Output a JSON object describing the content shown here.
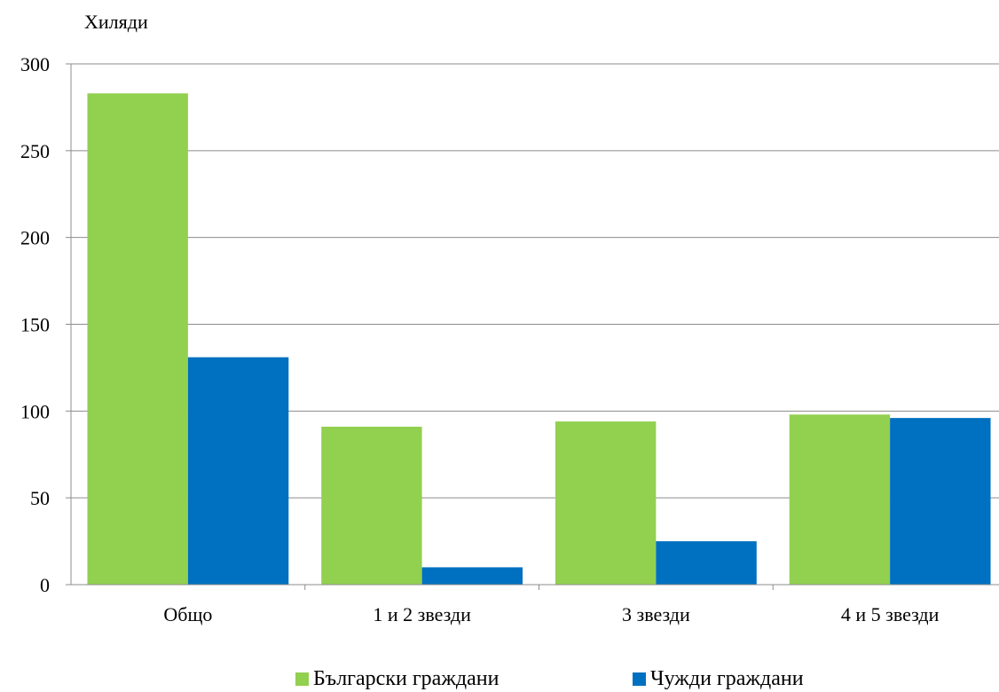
{
  "chart_data": {
    "type": "bar",
    "ylabel": "Хиляди",
    "categories": [
      "Общо",
      "1 и 2 звезди",
      "3 звезди",
      "4 и 5 звезди"
    ],
    "series": [
      {
        "name": "Български граждани",
        "color": "#92D050",
        "values": [
          283,
          91,
          94,
          98
        ]
      },
      {
        "name": "Чужди граждани",
        "color": "#0070C0",
        "values": [
          131,
          10,
          25,
          96
        ]
      }
    ],
    "ylim": [
      0,
      300
    ],
    "yticks": [
      0,
      50,
      100,
      150,
      200,
      250,
      300
    ],
    "grid": true,
    "legend_position": "bottom"
  }
}
